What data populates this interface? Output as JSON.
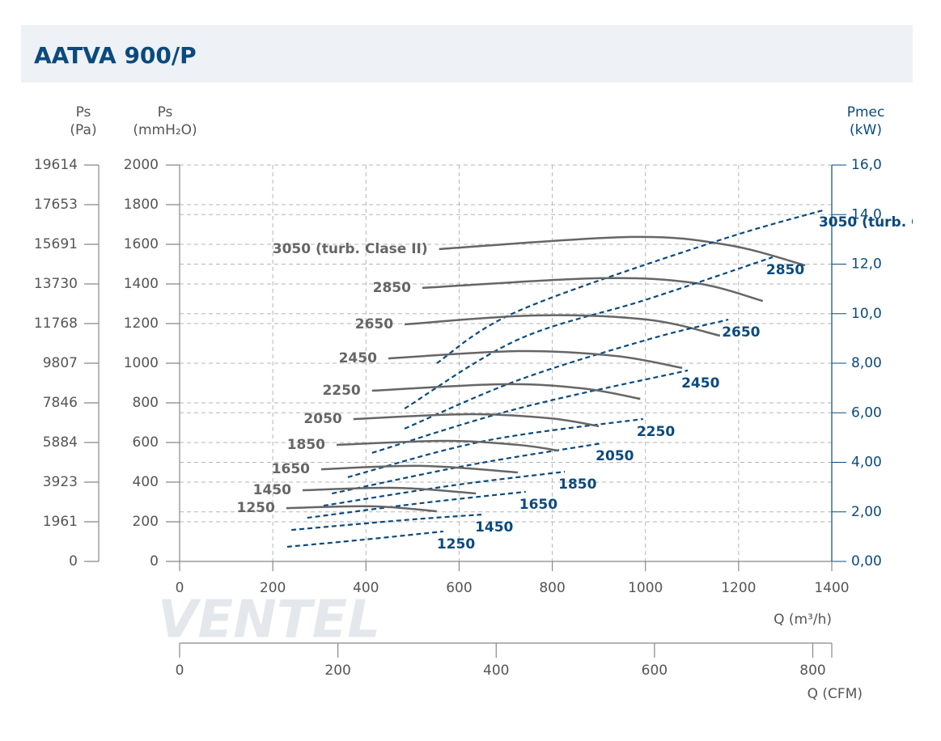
{
  "chart_data": {
    "type": "line",
    "title": "AATVA 900/P",
    "watermark": "VENTEL",
    "pa_title": [
      "Ps",
      "(Pa)"
    ],
    "y_title": [
      "Ps",
      "(mmH₂O)"
    ],
    "y2_title": [
      "Pmec",
      "(kW)"
    ],
    "x_title": "Q (m³/h)",
    "cfm_title": "Q (CFM)",
    "xlim": [
      0,
      1400
    ],
    "xticks": [
      0,
      200,
      400,
      600,
      800,
      1000,
      1200,
      1400
    ],
    "cfm_lim": [
      0,
      824
    ],
    "cfm_ticks": [
      0,
      200,
      400,
      600,
      800
    ],
    "ylim": [
      0,
      2000
    ],
    "yticks": [
      0,
      200,
      400,
      600,
      800,
      1000,
      1200,
      1400,
      1600,
      1800,
      2000
    ],
    "pa_lim": [
      0,
      19614
    ],
    "pa_ticks": [
      0,
      1961,
      3923,
      5884,
      7846,
      9807,
      11768,
      13730,
      15691,
      17653,
      19614
    ],
    "y2lim": [
      0,
      16
    ],
    "y2ticks": [
      {
        "value": 0,
        "label": "0,00"
      },
      {
        "value": 2,
        "label": "2,00"
      },
      {
        "value": 4,
        "label": "4,00"
      },
      {
        "value": 6,
        "label": "6,00"
      },
      {
        "value": 8,
        "label": "8,00"
      },
      {
        "value": 10,
        "label": "10,0"
      },
      {
        "value": 12,
        "label": "12,0"
      },
      {
        "value": 14,
        "label": "14,0"
      },
      {
        "value": 16,
        "label": "16,0"
      }
    ],
    "grid": true,
    "pressure_color": "#666666",
    "power_color": "#0b4a7d",
    "series": [
      {
        "name": "3050 (turb. Clase II)",
        "pressure": {
          "x": [
            557,
            969,
            1178,
            1343
          ],
          "y": [
            1576,
            1637,
            1596,
            1494
          ]
        },
        "power": {
          "x": [
            552,
            726,
            1143,
            1386
          ],
          "y": [
            8.0,
            10.1,
            12.87,
            14.2
          ]
        }
      },
      {
        "name": "2850",
        "pressure": {
          "x": [
            521,
            900,
            1108,
            1252
          ],
          "y": [
            1380,
            1429,
            1404,
            1314
          ]
        },
        "power": {
          "x": [
            483,
            726,
            1004,
            1273
          ],
          "y": [
            6.17,
            8.95,
            10.58,
            12.28
          ]
        }
      },
      {
        "name": "2650",
        "pressure": {
          "x": [
            483,
            761,
            1004,
            1160
          ],
          "y": [
            1196,
            1241,
            1220,
            1139
          ]
        },
        "power": {
          "x": [
            483,
            726,
            1004,
            1178
          ],
          "y": [
            5.36,
            7.31,
            8.95,
            9.76
          ]
        }
      },
      {
        "name": "2450",
        "pressure": {
          "x": [
            448,
            726,
            934,
            1079
          ],
          "y": [
            1024,
            1061,
            1037,
            976
          ]
        },
        "power": {
          "x": [
            413,
            726,
            1091
          ],
          "y": [
            4.38,
            6.17,
            7.71
          ]
        }
      },
      {
        "name": "2250",
        "pressure": {
          "x": [
            413,
            691,
            865,
            989
          ],
          "y": [
            861,
            894,
            873,
            820
          ]
        },
        "power": {
          "x": [
            361,
            657,
            995
          ],
          "y": [
            3.4,
            4.87,
            5.75
          ]
        }
      },
      {
        "name": "2050",
        "pressure": {
          "x": [
            373,
            622,
            796,
            900
          ],
          "y": [
            718,
            743,
            722,
            682
          ]
        },
        "power": {
          "x": [
            327,
            622,
            907
          ],
          "y": [
            2.74,
            3.89,
            4.77
          ]
        }
      },
      {
        "name": "1850",
        "pressure": {
          "x": [
            337,
            570,
            726,
            813
          ],
          "y": [
            588,
            608,
            588,
            559
          ]
        },
        "power": {
          "x": [
            309,
            587,
            827
          ],
          "y": [
            2.25,
            3.07,
            3.62
          ]
        }
      },
      {
        "name": "1650",
        "pressure": {
          "x": [
            304,
            518,
            726
          ],
          "y": [
            465,
            482,
            449
          ]
        },
        "power": {
          "x": [
            274,
            518,
            743
          ],
          "y": [
            1.76,
            2.35,
            2.81
          ]
        }
      },
      {
        "name": "1450",
        "pressure": {
          "x": [
            264,
            466,
            636
          ],
          "y": [
            359,
            371,
            343
          ]
        },
        "power": {
          "x": [
            240,
            483,
            648
          ],
          "y": [
            1.27,
            1.67,
            1.89
          ]
        }
      },
      {
        "name": "1250",
        "pressure": {
          "x": [
            229,
            413,
            552
          ],
          "y": [
            269,
            278,
            253
          ]
        },
        "power": {
          "x": [
            231,
            396,
            566
          ],
          "y": [
            0.59,
            0.88,
            1.21
          ]
        }
      }
    ]
  }
}
